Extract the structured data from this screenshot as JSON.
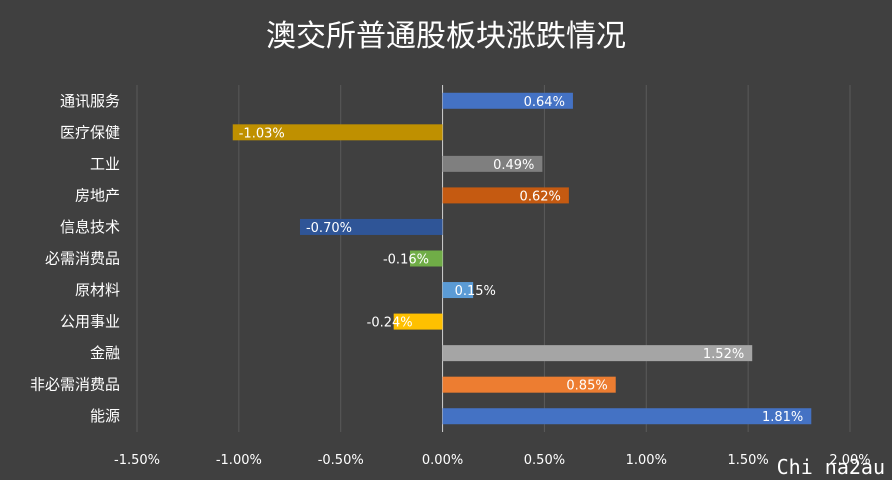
{
  "chart_data": {
    "type": "bar",
    "orientation": "horizontal",
    "title": "澳交所普通股板块涨跌情况",
    "xlabel": "",
    "ylabel": "",
    "xlim": [
      -0.015,
      0.02
    ],
    "x_ticks": [
      "-1.50%",
      "-1.00%",
      "-0.50%",
      "0.00%",
      "0.50%",
      "1.00%",
      "1.50%",
      "2.00%"
    ],
    "grid": "vertical",
    "categories": [
      "通讯服务",
      "医疗保健",
      "工业",
      "房地产",
      "信息技术",
      "必需消费品",
      "原材料",
      "公用事业",
      "金融",
      "非必需消费品",
      "能源"
    ],
    "values": [
      0.0064,
      -0.0103,
      0.0049,
      0.0062,
      -0.007,
      -0.0016,
      0.0015,
      -0.0024,
      0.0152,
      0.0085,
      0.0181
    ],
    "data_labels": [
      "0.64%",
      "-1.03%",
      "0.49%",
      "0.62%",
      "-0.70%",
      "-0.16%",
      "0.15%",
      "-0.24%",
      "1.52%",
      "0.85%",
      "1.81%"
    ],
    "bar_colors": [
      "#4472C4",
      "#BF9000",
      "#7F7F7F",
      "#C55A11",
      "#2F5597",
      "#70AD47",
      "#5B9BD5",
      "#FFC000",
      "#A5A5A5",
      "#ED7D31",
      "#4472C4"
    ]
  },
  "watermark": "Chi na2au",
  "colors": {
    "background": "#404040",
    "grid": "#5a5a5a",
    "text": "#ffffff"
  }
}
